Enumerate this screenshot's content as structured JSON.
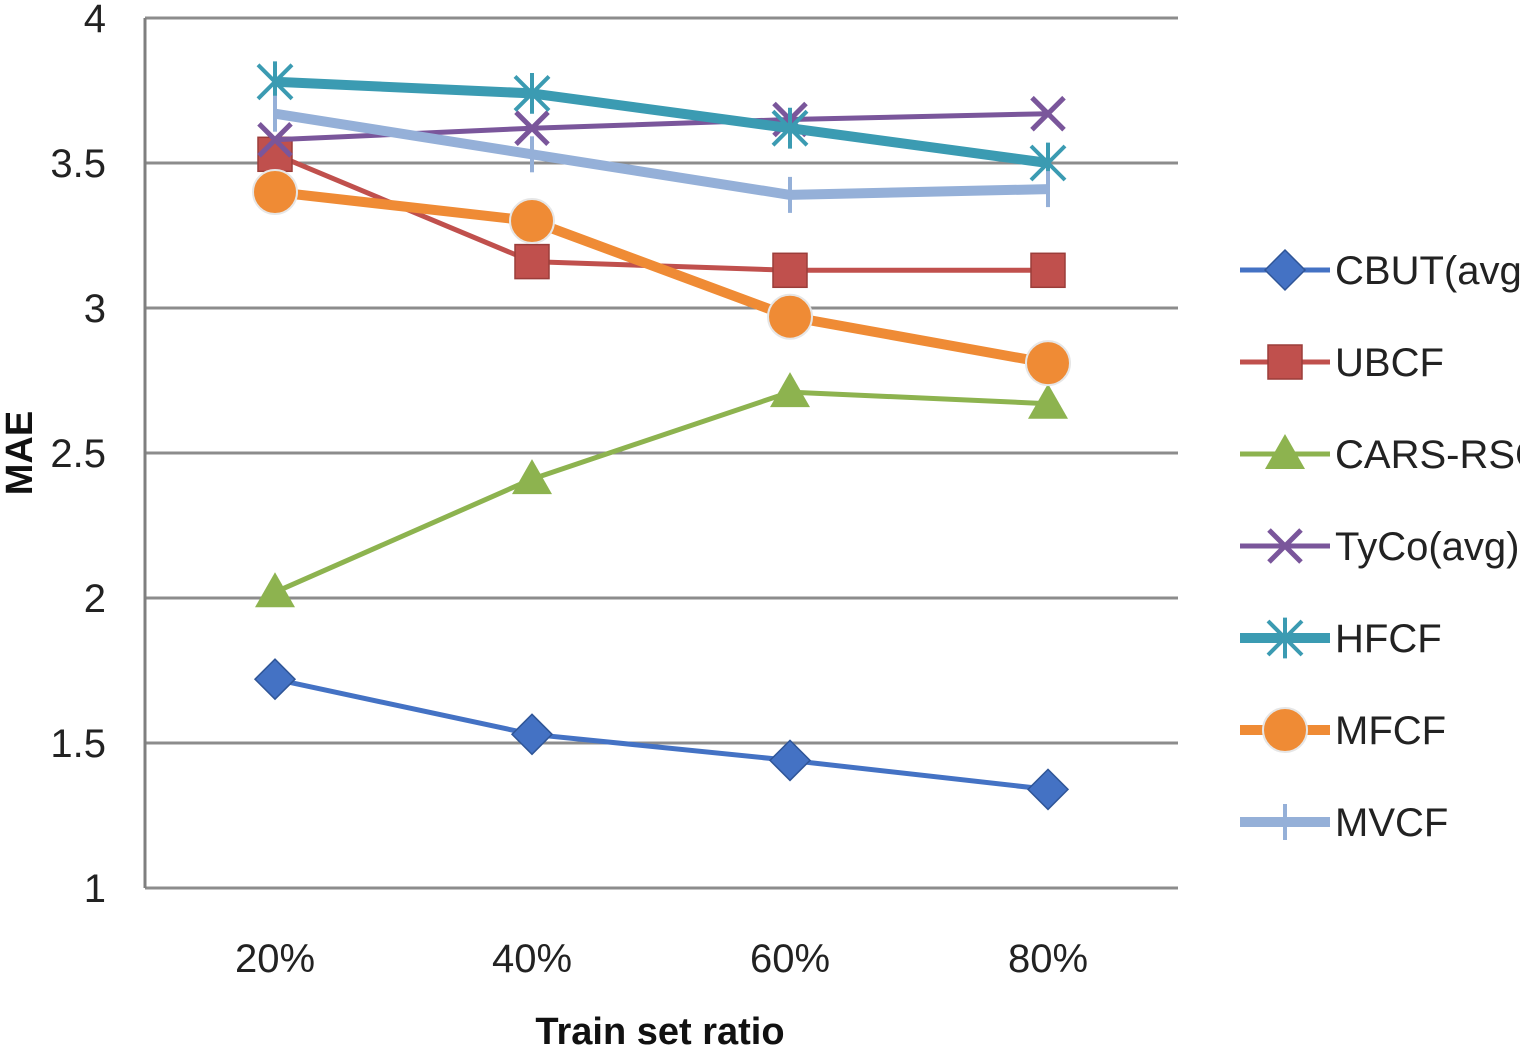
{
  "chart_data": {
    "type": "line",
    "title": "",
    "xlabel": "Train set ratio",
    "ylabel": "MAE",
    "categories": [
      "20%",
      "40%",
      "60%",
      "80%"
    ],
    "ylim": [
      1,
      4
    ],
    "yticks": [
      "1",
      "1.5",
      "2",
      "2.5",
      "3",
      "3.5",
      "4"
    ],
    "grid": "horizontal",
    "legend_position": "right",
    "series": [
      {
        "name": "CBUT(avg)",
        "values": [
          1.72,
          1.53,
          1.44,
          1.34
        ],
        "color": "#4472C4",
        "marker": "diamond"
      },
      {
        "name": "UBCF",
        "values": [
          3.53,
          3.16,
          3.13,
          3.13
        ],
        "color": "#C0504D",
        "marker": "square"
      },
      {
        "name": "CARS-RSCF",
        "values": [
          2.02,
          2.41,
          2.71,
          2.67
        ],
        "color": "#8DB34F",
        "marker": "triangle"
      },
      {
        "name": "TyCo(avg)",
        "values": [
          3.58,
          3.62,
          3.65,
          3.67
        ],
        "color": "#7A569B",
        "marker": "x"
      },
      {
        "name": "HFCF",
        "values": [
          3.78,
          3.74,
          3.62,
          3.5
        ],
        "color": "#3B9BB2",
        "marker": "asterisk"
      },
      {
        "name": "MFCF",
        "values": [
          3.4,
          3.3,
          2.97,
          2.81
        ],
        "color": "#EF8B35",
        "marker": "circle"
      },
      {
        "name": "MVCF",
        "values": [
          3.67,
          3.53,
          3.39,
          3.41
        ],
        "color": "#95B0D8",
        "marker": "plus"
      }
    ]
  }
}
